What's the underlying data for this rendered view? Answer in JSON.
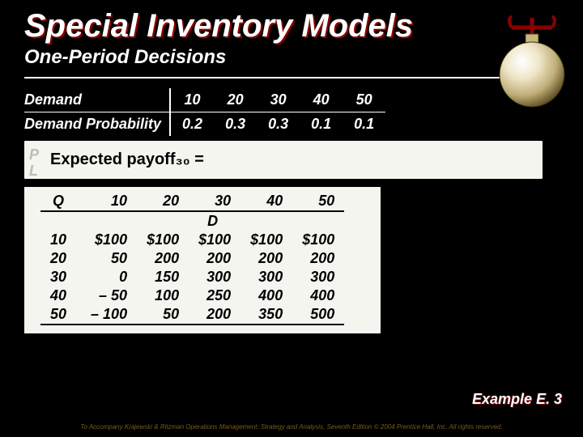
{
  "title": "Special Inventory Models",
  "subtitle": "One-Period Decisions",
  "demand_table": {
    "row1_label": "Demand",
    "row1": [
      "10",
      "20",
      "30",
      "40",
      "50"
    ],
    "row2_label": "Demand Probability",
    "row2": [
      "0.2",
      "0.3",
      "0.3",
      "0.1",
      "0.1"
    ]
  },
  "callout": {
    "text": "Expected payoff₃₀ =",
    "faded_top": "P",
    "faded_bottom": "L"
  },
  "payoff": {
    "d_label": "D",
    "q_label": "Q",
    "columns": [
      "10",
      "20",
      "30",
      "40",
      "50"
    ],
    "rows": [
      {
        "q": "10",
        "cells": [
          "$100",
          "$100",
          "$100",
          "$100",
          "$100"
        ]
      },
      {
        "q": "20",
        "cells": [
          "50",
          "200",
          "200",
          "200",
          "200"
        ]
      },
      {
        "q": "30",
        "cells": [
          "0",
          "150",
          "300",
          "300",
          "300"
        ]
      },
      {
        "q": "40",
        "cells": [
          "– 50",
          "100",
          "250",
          "400",
          "400"
        ]
      },
      {
        "q": "50",
        "cells": [
          "– 100",
          "50",
          "200",
          "350",
          "500"
        ]
      }
    ]
  },
  "example_label": "Example E. 3",
  "footer": "To Accompany Krajewski & Ritzman Operations Management: Strategy and Analysis, Seventh Edition © 2004 Prentice Hall, Inc. All rights reserved.",
  "colors": {
    "background": "#000000",
    "title_shadow": "#8b0000",
    "callout_bg": "#f5f5f0",
    "footer_text": "#7a5a1f"
  }
}
